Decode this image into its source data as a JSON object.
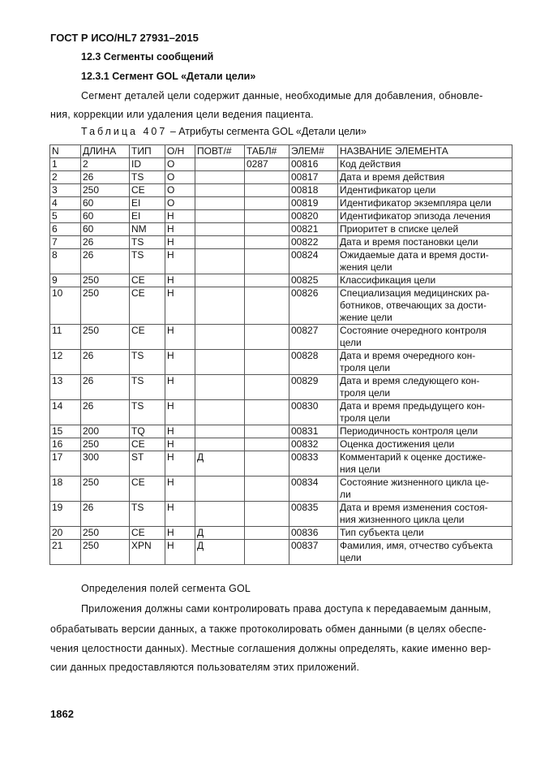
{
  "header": "ГОСТ Р ИСО/HL7 27931–2015",
  "section": "12.3 Сегменты сообщений",
  "subsection": "12.3.1 Сегмент GOL «Детали цели»",
  "intro_line1": "Сегмент деталей цели содержит данные, необходимые для добавления, обновле-",
  "intro_line2": "ния, коррекции или удаления цели ведения пациента.",
  "caption_prefix": "Таблица 407",
  "caption_rest": " – Атрибуты сегмента GOL «Детали цели»",
  "table": {
    "columns": [
      "N",
      "ДЛИНА",
      "ТИП",
      "О/Н",
      "ПОВТ/#",
      "ТАБЛ#",
      "ЭЛЕМ#",
      "НАЗВАНИЕ ЭЛЕМЕНТА"
    ],
    "rows": [
      [
        "1",
        "2",
        "ID",
        "О",
        "",
        "0287",
        "00816",
        "Код действия"
      ],
      [
        "2",
        "26",
        "TS",
        "О",
        "",
        "",
        "00817",
        "Дата и время действия"
      ],
      [
        "3",
        "250",
        "CE",
        "О",
        "",
        "",
        "00818",
        "Идентификатор цели"
      ],
      [
        "4",
        "60",
        "EI",
        "О",
        "",
        "",
        "00819",
        "Идентификатор экземпляра цели"
      ],
      [
        "5",
        "60",
        "EI",
        "Н",
        "",
        "",
        "00820",
        "Идентификатор эпизода лечения"
      ],
      [
        "6",
        "60",
        "NM",
        "Н",
        "",
        "",
        "00821",
        "Приоритет в списке целей"
      ],
      [
        "7",
        "26",
        "TS",
        "Н",
        "",
        "",
        "00822",
        "Дата и время постановки цели"
      ],
      [
        "8",
        "26",
        "TS",
        "Н",
        "",
        "",
        "00824",
        "Ожидаемые дата и время дости-\nжения цели"
      ],
      [
        "9",
        "250",
        "CE",
        "Н",
        "",
        "",
        "00825",
        "Классификация цели"
      ],
      [
        "10",
        "250",
        "CE",
        "Н",
        "",
        "",
        "00826",
        "Специализация медицинских ра-\nботников, отвечающих за дости-\nжение цели"
      ],
      [
        "11",
        "250",
        "CE",
        "Н",
        "",
        "",
        "00827",
        "Состояние очередного контроля\nцели"
      ],
      [
        "12",
        "26",
        "TS",
        "Н",
        "",
        "",
        "00828",
        "Дата и время очередного кон-\nтроля цели"
      ],
      [
        "13",
        "26",
        "TS",
        "Н",
        "",
        "",
        "00829",
        "Дата и время следующего кон-\nтроля цели"
      ],
      [
        "14",
        "26",
        "TS",
        "Н",
        "",
        "",
        "00830",
        "Дата и время предыдущего кон-\nтроля цели"
      ],
      [
        "15",
        "200",
        "TQ",
        "Н",
        "",
        "",
        "00831",
        "Периодичность контроля цели"
      ],
      [
        "16",
        "250",
        "CE",
        "Н",
        "",
        "",
        "00832",
        "Оценка достижения цели"
      ],
      [
        "17",
        "300",
        "ST",
        "Н",
        "Д",
        "",
        "00833",
        "Комментарий к оценке достиже-\nния цели"
      ],
      [
        "18",
        "250",
        "CE",
        "Н",
        "",
        "",
        "00834",
        "Состояние жизненного цикла це-\nли"
      ],
      [
        "19",
        "26",
        "TS",
        "Н",
        "",
        "",
        "00835",
        "Дата и время изменения состоя-\nния жизненного цикла цели"
      ],
      [
        "20",
        "250",
        "CE",
        "Н",
        "Д",
        "",
        "00836",
        "Тип субъекта цели"
      ],
      [
        "21",
        "250",
        "XPN",
        "Н",
        "Д",
        "",
        "00837",
        "Фамилия, имя, отчество субъекта\nцели"
      ]
    ]
  },
  "defs_title": "Определения полей сегмента GOL",
  "body_lines": [
    "Приложения должны сами контролировать права доступа к передаваемым данным,",
    "обрабатывать версии данных, а также протоколировать обмен данными (в целях обеспе-",
    "чения целостности данных). Местные соглашения должны определять, какие именно вер-",
    "сии данных предоставляются пользователям этих приложений."
  ],
  "page_number": "1862"
}
